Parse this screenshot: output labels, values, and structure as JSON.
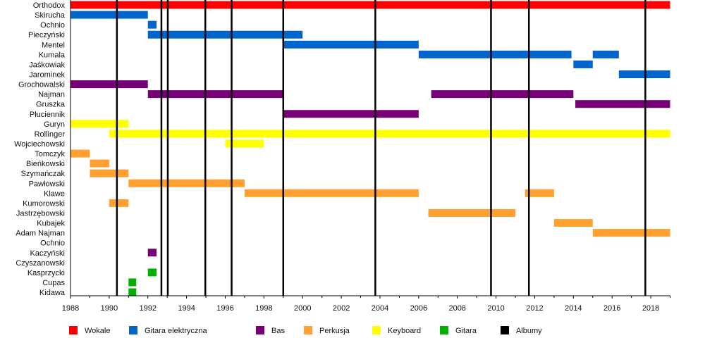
{
  "chart_data": {
    "type": "bar",
    "subtype": "timeline",
    "title": "",
    "xlabel": "",
    "ylabel": "",
    "xlim": [
      1988,
      2019
    ],
    "x_ticks": [
      "1988",
      "1990",
      "1992",
      "1994",
      "1996",
      "1998",
      "2000",
      "2002",
      "2004",
      "2006",
      "2008",
      "2010",
      "2012",
      "2014",
      "2016",
      "2018"
    ],
    "grid": false,
    "legend_placement": "bottom",
    "roles": [
      {
        "key": "vocals",
        "name": "Wokale",
        "color": "#ff0000"
      },
      {
        "key": "guitar_el",
        "name": "Gitara elektryczna",
        "color": "#0066cc"
      },
      {
        "key": "bass",
        "name": "Bas",
        "color": "#770077"
      },
      {
        "key": "drums",
        "name": "Perkusja",
        "color": "#ffa030"
      },
      {
        "key": "keys",
        "name": "Keyboard",
        "color": "#ffff00"
      },
      {
        "key": "guitar",
        "name": "Gitara",
        "color": "#00b000"
      },
      {
        "key": "albums",
        "name": "Albumy",
        "color": "#000000"
      }
    ],
    "members": [
      {
        "name": "Orthodox",
        "role": "vocals",
        "periods": [
          [
            1988,
            2019
          ]
        ]
      },
      {
        "name": "Skirucha",
        "role": "guitar_el",
        "periods": [
          [
            1988,
            1992
          ]
        ]
      },
      {
        "name": "Ochnio",
        "role": "guitar_el",
        "periods": [
          [
            1992,
            1992.45
          ]
        ]
      },
      {
        "name": "Pieczyński",
        "role": "guitar_el",
        "periods": [
          [
            1992,
            2000
          ]
        ]
      },
      {
        "name": "Mentel",
        "role": "guitar_el",
        "periods": [
          [
            1999,
            2006
          ]
        ]
      },
      {
        "name": "Kumala",
        "role": "guitar_el",
        "periods": [
          [
            2006,
            2013.9
          ],
          [
            2015,
            2016.35
          ]
        ]
      },
      {
        "name": "Jaśkowiak",
        "role": "guitar_el",
        "periods": [
          [
            2014,
            2015
          ]
        ]
      },
      {
        "name": "Jarominek",
        "role": "guitar_el",
        "periods": [
          [
            2016.35,
            2019
          ]
        ]
      },
      {
        "name": "Grochowalski",
        "role": "bass",
        "periods": [
          [
            1988,
            1992
          ]
        ]
      },
      {
        "name": "Najman",
        "role": "bass",
        "periods": [
          [
            1992,
            1999
          ],
          [
            2006.65,
            2014
          ]
        ]
      },
      {
        "name": "Gruszka",
        "role": "bass",
        "periods": [
          [
            2014.1,
            2019
          ]
        ]
      },
      {
        "name": "Płuciennik",
        "role": "bass",
        "periods": [
          [
            1999,
            2006
          ]
        ]
      },
      {
        "name": "Guryn",
        "role": "keys",
        "periods": [
          [
            1988,
            1991
          ]
        ]
      },
      {
        "name": "Rollinger",
        "role": "keys",
        "periods": [
          [
            1990,
            2019
          ]
        ]
      },
      {
        "name": "Wojciechowski",
        "role": "keys",
        "periods": [
          [
            1996,
            1998
          ]
        ]
      },
      {
        "name": "Tomczyk",
        "role": "drums",
        "periods": [
          [
            1988,
            1989
          ]
        ]
      },
      {
        "name": "Bieńkowski",
        "role": "drums",
        "periods": [
          [
            1989,
            1990
          ]
        ]
      },
      {
        "name": "Szymańczak",
        "role": "drums",
        "periods": [
          [
            1989,
            1991
          ]
        ]
      },
      {
        "name": "Pawłowski",
        "role": "drums",
        "periods": [
          [
            1991,
            1997
          ]
        ]
      },
      {
        "name": "Klawe",
        "role": "drums",
        "periods": [
          [
            1997,
            2006
          ],
          [
            2011.5,
            2013
          ]
        ]
      },
      {
        "name": "Kumorowski",
        "role": "drums",
        "periods": [
          [
            1990,
            1991
          ]
        ]
      },
      {
        "name": "Jastrzębowski",
        "role": "drums",
        "periods": [
          [
            2006.5,
            2011
          ]
        ]
      },
      {
        "name": "Kubajek",
        "role": "drums",
        "periods": [
          [
            2013,
            2015
          ]
        ]
      },
      {
        "name": "Adam Najman",
        "role": "drums",
        "periods": [
          [
            2015,
            2019
          ]
        ]
      },
      {
        "name": "Ochnio",
        "role": "guitar",
        "periods": []
      },
      {
        "name": "Kaczyński",
        "role": "bass",
        "periods": [
          [
            1992,
            1992.45
          ]
        ]
      },
      {
        "name": "Czyszanowski",
        "role": "bass",
        "periods": [
          [
            1999,
            1999.02
          ]
        ]
      },
      {
        "name": "Kasprzycki",
        "role": "guitar",
        "periods": [
          [
            1992,
            1992.45
          ]
        ]
      },
      {
        "name": "Cupas",
        "role": "guitar",
        "periods": [
          [
            1991,
            1991.4
          ]
        ]
      },
      {
        "name": "Kidawa",
        "role": "guitar",
        "periods": [
          [
            1991,
            1991.4
          ]
        ]
      }
    ],
    "albums": [
      1990.4,
      1992.7,
      1993.03,
      1994.97,
      1996.33,
      1999.0,
      2003.76,
      2009.74,
      2011.7,
      2017.72
    ]
  }
}
